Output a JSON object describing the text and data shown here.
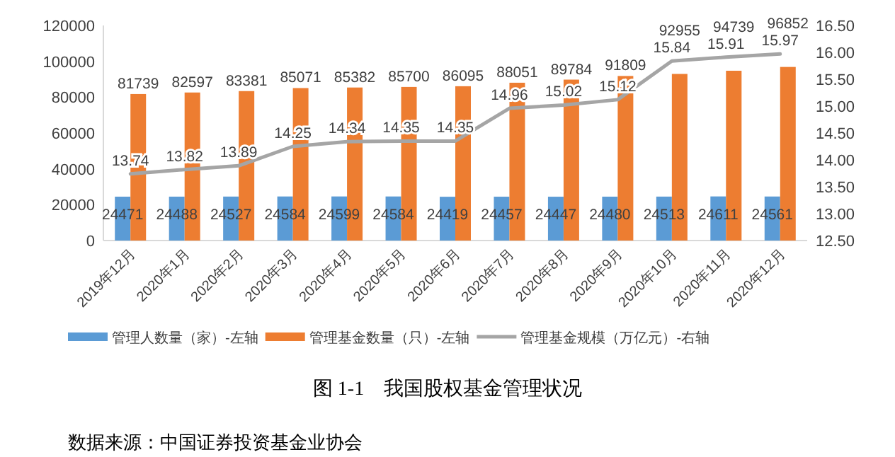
{
  "chart_data": {
    "type": "bar",
    "title": "图 1-1　我国股权基金管理状况",
    "categories": [
      "2019年12月",
      "2020年1月",
      "2020年2月",
      "2020年3月",
      "2020年4月",
      "2020年5月",
      "2020年6月",
      "2020年7月",
      "2020年8月",
      "2020年9月",
      "2020年10月",
      "2020年11月",
      "2020年12月"
    ],
    "series": [
      {
        "name": "管理人数量（家）-左轴",
        "color": "#5b9bd5",
        "values": [
          24471,
          24488,
          24527,
          24584,
          24599,
          24584,
          24419,
          24457,
          24447,
          24480,
          24513,
          24611,
          24561
        ]
      },
      {
        "name": "管理基金数量（只）-左轴",
        "color": "#ed7d31",
        "values": [
          81739,
          82597,
          83381,
          85071,
          85382,
          85700,
          86095,
          88051,
          89784,
          91809,
          92955,
          94739,
          96852
        ]
      },
      {
        "name": "管理基金规模（万亿元）-右轴",
        "type": "line",
        "axis": "y2",
        "color": "#a5a5a5",
        "values": [
          13.74,
          13.82,
          13.89,
          14.25,
          14.34,
          14.35,
          14.35,
          14.96,
          15.02,
          15.12,
          15.84,
          15.91,
          15.97
        ]
      }
    ],
    "ylim": [
      0,
      120000
    ],
    "yticks": [
      0,
      20000,
      40000,
      60000,
      80000,
      100000,
      120000
    ],
    "y2lim": [
      12.5,
      16.5
    ],
    "y2ticks": [
      {
        "value": 12.5,
        "label": "12.50"
      },
      {
        "value": 13,
        "label": "13.00"
      },
      {
        "value": 13.5,
        "label": "13.50"
      },
      {
        "value": 14,
        "label": "14.00"
      },
      {
        "value": 14.5,
        "label": "14.50"
      },
      {
        "value": 15,
        "label": "15.00"
      },
      {
        "value": 15.5,
        "label": "15.50"
      },
      {
        "value": 16,
        "label": "16.00"
      },
      {
        "value": 16.5,
        "label": "16.50"
      }
    ],
    "data_labels": true,
    "legend": "bottom",
    "grid": false,
    "annotations": [
      "数据来源：中国证券投资基金业协会"
    ]
  }
}
